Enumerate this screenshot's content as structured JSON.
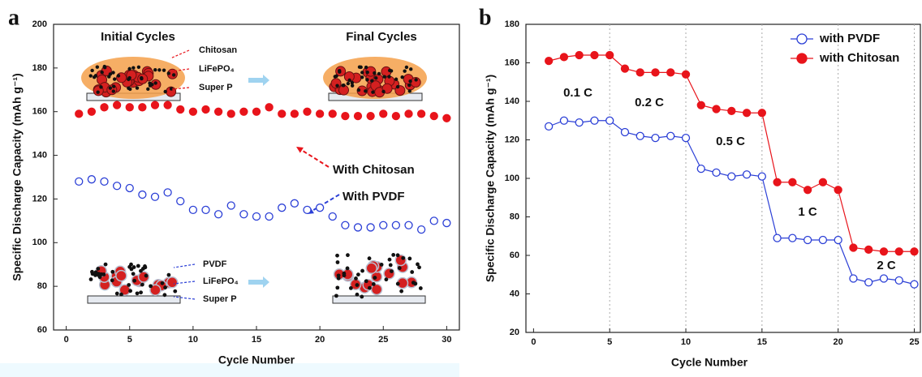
{
  "chart_data": [
    {
      "type": "scatter",
      "panel_label": "a",
      "x_label": "Cycle Number",
      "y_label": "Specific Discharge Capacity (mAh g⁻¹)",
      "x": [
        1,
        2,
        3,
        4,
        5,
        6,
        7,
        8,
        9,
        10,
        11,
        12,
        13,
        14,
        15,
        16,
        17,
        18,
        19,
        20,
        21,
        22,
        23,
        24,
        25,
        26,
        27,
        28,
        29,
        30
      ],
      "series": [
        {
          "name": "With Chitosan",
          "color": "#e8141b",
          "marker": "filled",
          "values": [
            159,
            160,
            162,
            163,
            162,
            162,
            163,
            163,
            161,
            160,
            161,
            160,
            159,
            160,
            160,
            162,
            159,
            159,
            160,
            159,
            159,
            158,
            158,
            158,
            159,
            158,
            159,
            159,
            158,
            157
          ]
        },
        {
          "name": "With PVDF",
          "color": "#2b3fd6",
          "marker": "open",
          "values": [
            128,
            129,
            128,
            126,
            125,
            122,
            121,
            123,
            119,
            115,
            115,
            113,
            117,
            113,
            112,
            112,
            116,
            118,
            115,
            116,
            112,
            108,
            107,
            107,
            108,
            108,
            108,
            106,
            110,
            109
          ]
        }
      ],
      "xlim": [
        -1,
        31
      ],
      "xticks": [
        0,
        5,
        10,
        15,
        20,
        25,
        30
      ],
      "ylim": [
        60,
        200
      ],
      "yticks": [
        60,
        80,
        100,
        120,
        140,
        160,
        180,
        200
      ],
      "grid": false,
      "annotations": [
        "Initial Cycles",
        "Final Cycles",
        "Chitosan",
        "LiFePO₄",
        "Super P",
        "With Chitosan",
        "With PVDF",
        "PVDF",
        "LiFePO₄",
        "Super P"
      ]
    },
    {
      "type": "line",
      "panel_label": "b",
      "x_label": "Cycle Number",
      "y_label": "Specific Discharge Capacity (mAh g⁻¹)",
      "x": [
        1,
        2,
        3,
        4,
        5,
        6,
        7,
        8,
        9,
        10,
        11,
        12,
        13,
        14,
        15,
        16,
        17,
        18,
        19,
        20,
        21,
        22,
        23,
        24,
        25
      ],
      "series": [
        {
          "name": "with PVDF",
          "color": "#2b3fd6",
          "marker": "open",
          "values": [
            127,
            130,
            129,
            130,
            130,
            124,
            122,
            121,
            122,
            121,
            105,
            103,
            101,
            102,
            101,
            69,
            69,
            68,
            68,
            68,
            48,
            46,
            48,
            47,
            45
          ]
        },
        {
          "name": "with Chitosan",
          "color": "#e8141b",
          "marker": "filled",
          "values": [
            161,
            163,
            164,
            164,
            164,
            157,
            155,
            155,
            155,
            154,
            138,
            136,
            135,
            134,
            134,
            98,
            98,
            94,
            98,
            94,
            64,
            63,
            62,
            62,
            62
          ]
        }
      ],
      "xlim": [
        -0.5,
        25.4
      ],
      "xticks": [
        0,
        5,
        10,
        15,
        20,
        25
      ],
      "ylim": [
        20,
        180
      ],
      "yticks": [
        20,
        40,
        60,
        80,
        100,
        120,
        140,
        160,
        180
      ],
      "grid": "x",
      "legend": "upper right",
      "annotations": [
        "0.1 C",
        "0.2 C",
        "0.5 C",
        "1 C",
        "2 C"
      ]
    }
  ]
}
